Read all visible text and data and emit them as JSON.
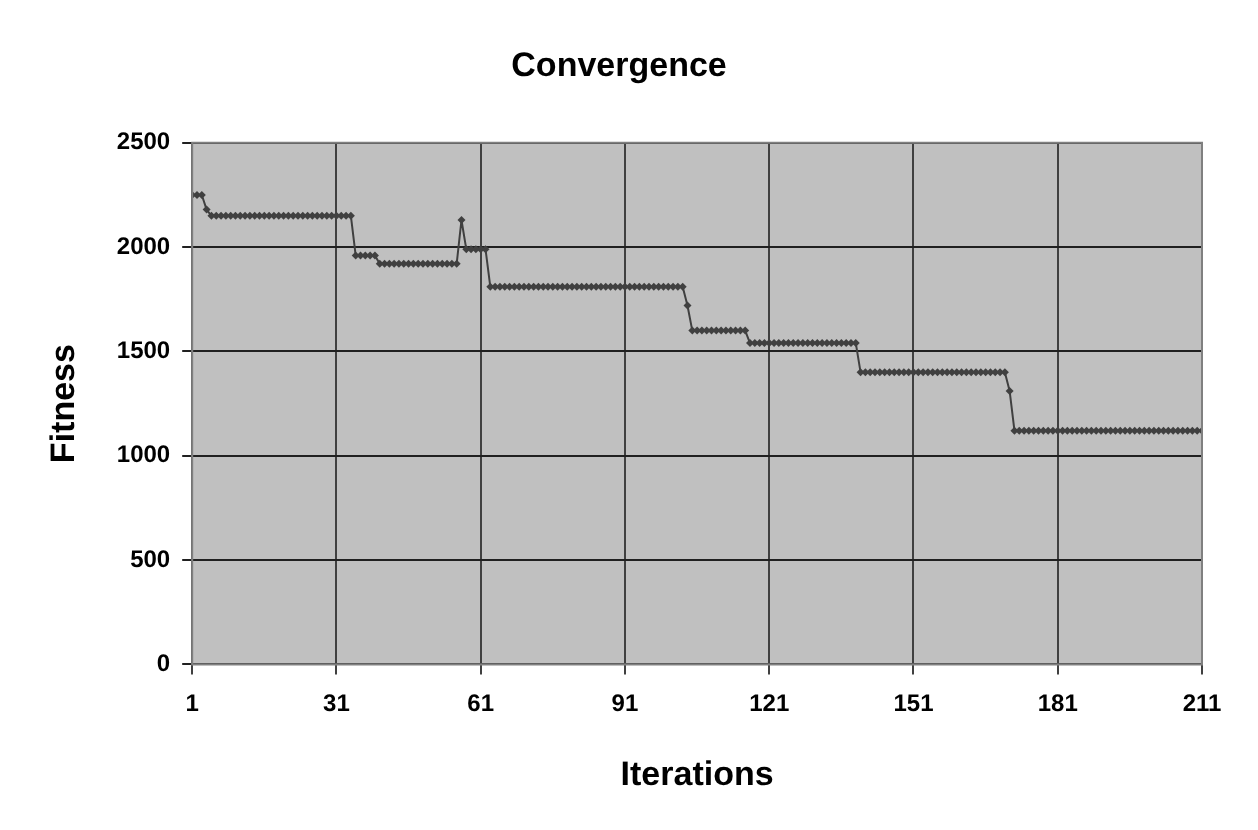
{
  "chart_data": {
    "type": "line",
    "title": "Convergence",
    "xlabel": "Iterations",
    "ylabel": "Fitness",
    "x": [
      1,
      2,
      3,
      4,
      5,
      6,
      7,
      8,
      9,
      10,
      11,
      12,
      13,
      14,
      15,
      16,
      17,
      18,
      19,
      20,
      21,
      22,
      23,
      24,
      25,
      26,
      27,
      28,
      29,
      30,
      31,
      32,
      33,
      34,
      35,
      36,
      37,
      38,
      39,
      40,
      41,
      42,
      43,
      44,
      45,
      46,
      47,
      48,
      49,
      50,
      51,
      52,
      53,
      54,
      55,
      56,
      57,
      58,
      59,
      60,
      61,
      62,
      63,
      64,
      65,
      66,
      67,
      68,
      69,
      70,
      71,
      72,
      73,
      74,
      75,
      76,
      77,
      78,
      79,
      80,
      81,
      82,
      83,
      84,
      85,
      86,
      87,
      88,
      89,
      90,
      91,
      92,
      93,
      94,
      95,
      96,
      97,
      98,
      99,
      100,
      101,
      102,
      103,
      104,
      105,
      106,
      107,
      108,
      109,
      110,
      111,
      112,
      113,
      114,
      115,
      116,
      117,
      118,
      119,
      120,
      121,
      122,
      123,
      124,
      125,
      126,
      127,
      128,
      129,
      130,
      131,
      132,
      133,
      134,
      135,
      136,
      137,
      138,
      139,
      140,
      141,
      142,
      143,
      144,
      145,
      146,
      147,
      148,
      149,
      150,
      151,
      152,
      153,
      154,
      155,
      156,
      157,
      158,
      159,
      160,
      161,
      162,
      163,
      164,
      165,
      166,
      167,
      168,
      169,
      170,
      171,
      172,
      173,
      174,
      175,
      176,
      177,
      178,
      179,
      180,
      181,
      182,
      183,
      184,
      185,
      186,
      187,
      188,
      189,
      190,
      191,
      192,
      193,
      194,
      195,
      196,
      197,
      198,
      199,
      200,
      201,
      202,
      203,
      204,
      205,
      206,
      207,
      208,
      209,
      210,
      211
    ],
    "series": [
      {
        "color": "#404040",
        "values": [
          2250,
          2250,
          2250,
          2180,
          2150,
          2150,
          2150,
          2150,
          2150,
          2150,
          2150,
          2150,
          2150,
          2150,
          2150,
          2150,
          2150,
          2150,
          2150,
          2150,
          2150,
          2150,
          2150,
          2150,
          2150,
          2150,
          2150,
          2150,
          2150,
          2150,
          2150,
          2150,
          2150,
          2150,
          1960,
          1960,
          1960,
          1960,
          1960,
          1920,
          1920,
          1920,
          1920,
          1920,
          1920,
          1920,
          1920,
          1920,
          1920,
          1920,
          1920,
          1920,
          1920,
          1920,
          1920,
          1920,
          2130,
          1990,
          1990,
          1990,
          1990,
          1990,
          1810,
          1810,
          1810,
          1810,
          1810,
          1810,
          1810,
          1810,
          1810,
          1810,
          1810,
          1810,
          1810,
          1810,
          1810,
          1810,
          1810,
          1810,
          1810,
          1810,
          1810,
          1810,
          1810,
          1810,
          1810,
          1810,
          1810,
          1810,
          1810,
          1810,
          1810,
          1810,
          1810,
          1810,
          1810,
          1810,
          1810,
          1810,
          1810,
          1810,
          1810,
          1720,
          1600,
          1600,
          1600,
          1600,
          1600,
          1600,
          1600,
          1600,
          1600,
          1600,
          1600,
          1600,
          1540,
          1540,
          1540,
          1540,
          1540,
          1540,
          1540,
          1540,
          1540,
          1540,
          1540,
          1540,
          1540,
          1540,
          1540,
          1540,
          1540,
          1540,
          1540,
          1540,
          1540,
          1540,
          1540,
          1400,
          1400,
          1400,
          1400,
          1400,
          1400,
          1400,
          1400,
          1400,
          1400,
          1400,
          1400,
          1400,
          1400,
          1400,
          1400,
          1400,
          1400,
          1400,
          1400,
          1400,
          1400,
          1400,
          1400,
          1400,
          1400,
          1400,
          1400,
          1400,
          1400,
          1400,
          1310,
          1120,
          1120,
          1120,
          1120,
          1120,
          1120,
          1120,
          1120,
          1120,
          1120,
          1120,
          1120,
          1120,
          1120,
          1120,
          1120,
          1120,
          1120,
          1120,
          1120,
          1120,
          1120,
          1120,
          1120,
          1120,
          1120,
          1120,
          1120,
          1120,
          1120,
          1120,
          1120,
          1120,
          1120,
          1120,
          1120,
          1120,
          1120,
          1120,
          1120
        ]
      }
    ],
    "xlim": [
      1,
      211
    ],
    "xticks": [
      1,
      31,
      61,
      91,
      121,
      151,
      181,
      211
    ],
    "ylim": [
      0,
      2500
    ],
    "yticks": [
      0,
      500,
      1000,
      1500,
      2000,
      2500
    ],
    "grid": true,
    "legend": false,
    "marker": "diamond",
    "line_style": "solid"
  }
}
